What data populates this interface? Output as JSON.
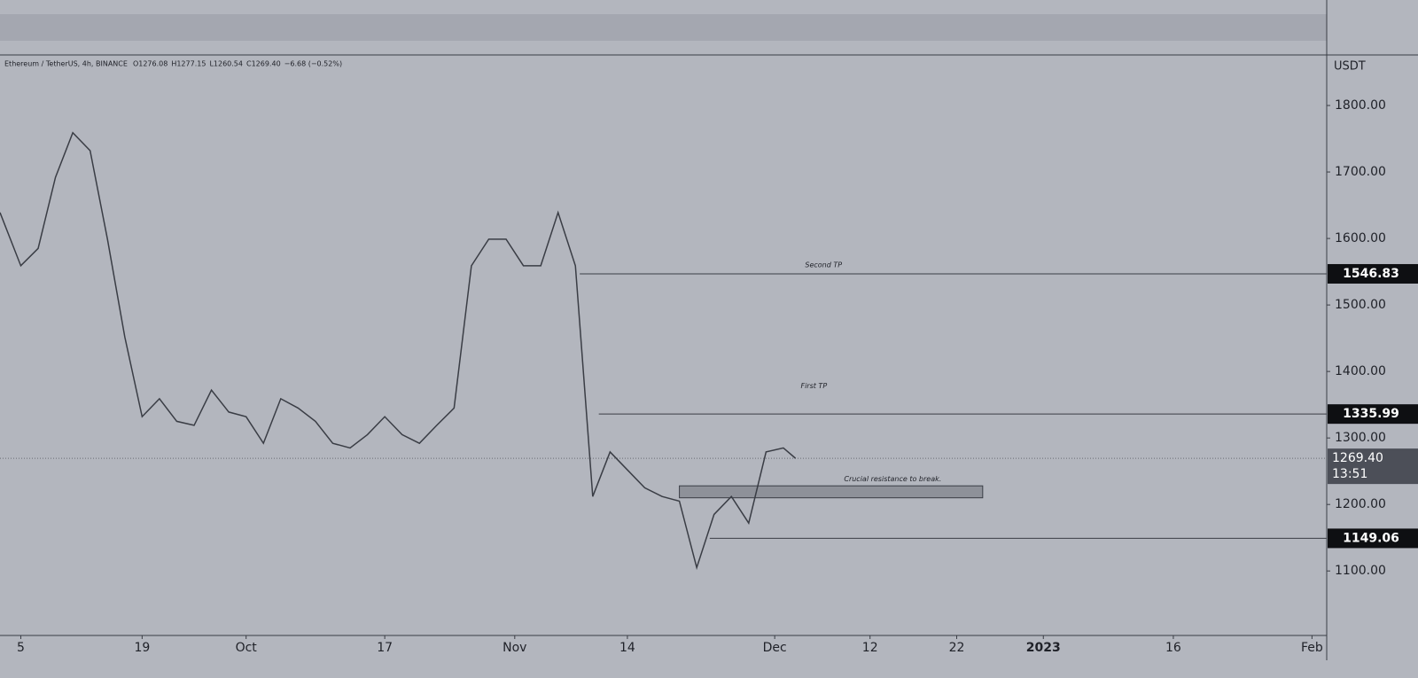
{
  "chart_data": {
    "type": "line",
    "title": "Ethereum / TetherUS, 4h, BINANCE",
    "ohlc": {
      "open": {
        "value": 1276.08,
        "label": "O1276.08"
      },
      "high": {
        "value": 1277.15,
        "label": "H1277.15"
      },
      "low": {
        "value": 1260.54,
        "label": "L1260.54"
      },
      "close": {
        "value": 1269.4,
        "label": "C1269.40"
      },
      "change": {
        "value": -6.68,
        "label": "−6.68 (−0.52%)"
      }
    },
    "axis_unit": "USDT",
    "x": [
      -2.4,
      0,
      2,
      4,
      6,
      8,
      10,
      12,
      14,
      16,
      18,
      20,
      22,
      24,
      26,
      28,
      30,
      32,
      34,
      36,
      38,
      40,
      42,
      44,
      46,
      48,
      50,
      52,
      54,
      56,
      58,
      60,
      62,
      64,
      66,
      68,
      70,
      72,
      74,
      76,
      78,
      80,
      82,
      84,
      86,
      88,
      89.4
    ],
    "series": [
      {
        "name": "ETHUSDT",
        "color": "#3a3d45",
        "values": [
          1639,
          1559,
          1585,
          1692,
          1759,
          1732,
          1599,
          1452,
          1332,
          1359,
          1325,
          1319,
          1372,
          1339,
          1332,
          1292,
          1359,
          1345,
          1325,
          1292,
          1285,
          1305,
          1332,
          1305,
          1292,
          1319,
          1345,
          1559,
          1599,
          1599,
          1559,
          1559,
          1639,
          1559,
          1212,
          1279,
          1252,
          1225,
          1212,
          1205,
          1105,
          1185,
          1212,
          1172,
          1279,
          1285,
          1269.4
        ]
      }
    ],
    "xlim": [
      -2.4,
      150.7
    ],
    "xticks": [
      {
        "value": 0,
        "label": "5"
      },
      {
        "value": 14,
        "label": "19"
      },
      {
        "value": 26,
        "label": "Oct"
      },
      {
        "value": 42,
        "label": "17"
      },
      {
        "value": 57,
        "label": "Nov"
      },
      {
        "value": 70,
        "label": "14"
      },
      {
        "value": 87,
        "label": "Dec"
      },
      {
        "value": 98,
        "label": "12"
      },
      {
        "value": 108,
        "label": "22"
      },
      {
        "value": 118,
        "label": "2023"
      },
      {
        "value": 133,
        "label": "16"
      },
      {
        "value": 149,
        "label": "Feb"
      }
    ],
    "ylim": [
      1003,
      1876
    ],
    "yticks": [
      {
        "value": 1100,
        "label": "1100.00"
      },
      {
        "value": 1200,
        "label": "1200.00"
      },
      {
        "value": 1300,
        "label": "1300.00"
      },
      {
        "value": 1400,
        "label": "1400.00"
      },
      {
        "value": 1500,
        "label": "1500.00"
      },
      {
        "value": 1600,
        "label": "1600.00"
      },
      {
        "value": 1700,
        "label": "1700.00"
      },
      {
        "value": 1800,
        "label": "1800.00"
      }
    ],
    "levels": [
      {
        "value": 1546.83,
        "from": 64.5
      },
      {
        "value": 1335.99,
        "from": 66.7
      },
      {
        "value": 1149.06,
        "from": 79.5
      }
    ],
    "last_price": {
      "value": 1269.4,
      "label": "1269.40",
      "countdown": "13:51"
    },
    "annotations": [
      {
        "text": "Second TP",
        "x": 90.5,
        "y": 1560
      },
      {
        "text": "First TP",
        "x": 90,
        "y": 1378
      },
      {
        "text": "Crucial resistance to break.",
        "x": 95,
        "y": 1238
      }
    ],
    "zone": {
      "from": 76,
      "to": 111,
      "low": 1210,
      "high": 1228
    }
  }
}
